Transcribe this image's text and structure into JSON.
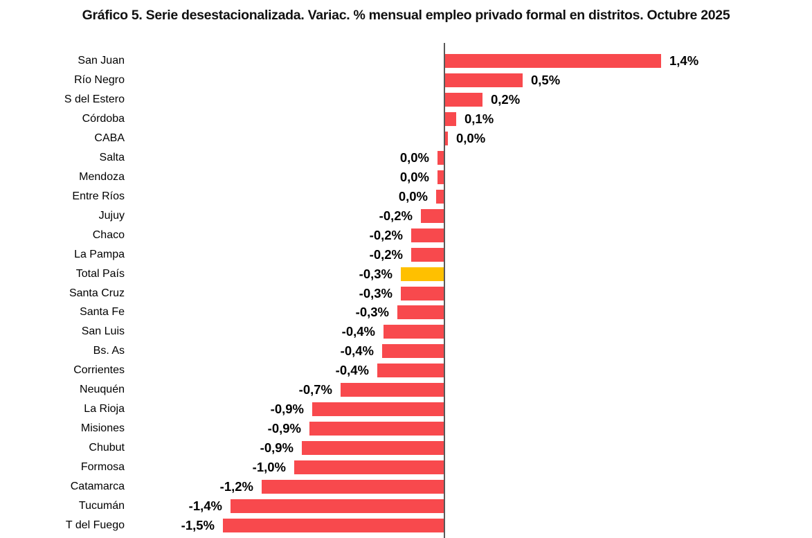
{
  "title": "Gráfico 5. Serie desestacionalizada. Variac. % mensual empleo privado formal en distritos. Octubre 2025",
  "colors": {
    "bar": "#f8494d",
    "bar_highlight": "#ffc000",
    "axis": "#595959",
    "text": "#000000",
    "title_text": "#111111"
  },
  "chart_data": {
    "type": "bar",
    "orientation": "horizontal",
    "title": "Gráfico 5. Serie desestacionalizada. Variac. % mensual empleo privado formal en distritos. Octubre 2025",
    "unit": "%",
    "grid": false,
    "legend": false,
    "xlim": [
      -1.6,
      2.4
    ],
    "highlight_category": "Total País",
    "categories": [
      "San Juan",
      "Río Negro",
      "S del Estero",
      "Córdoba",
      "CABA",
      "Salta",
      "Mendoza",
      "Entre Ríos",
      "Jujuy",
      "Chaco",
      "La Pampa",
      "Total País",
      "Santa Cruz",
      "Santa Fe",
      "San Luis",
      "Bs. As",
      "Corrientes",
      "Neuquén",
      "La Rioja",
      "Misiones",
      "Chubut",
      "Formosa",
      "Catamarca",
      "Tucumán",
      "T del Fuego"
    ],
    "values": [
      1.4,
      0.5,
      0.2,
      0.1,
      0.0,
      0.0,
      0.0,
      0.0,
      -0.2,
      -0.2,
      -0.2,
      -0.3,
      -0.3,
      -0.3,
      -0.4,
      -0.4,
      -0.4,
      -0.7,
      -0.9,
      -0.9,
      -0.9,
      -1.0,
      -1.2,
      -1.4,
      -1.5
    ],
    "value_labels": [
      "1,4%",
      "0,5%",
      "0,2%",
      "0,1%",
      "0,0%",
      "0,0%",
      "0,0%",
      "0,0%",
      "-0,2%",
      "-0,2%",
      "-0,2%",
      "-0,3%",
      "-0,3%",
      "-0,3%",
      "-0,4%",
      "-0,4%",
      "-0,4%",
      "-0,7%",
      "-0,9%",
      "-0,9%",
      "-0,9%",
      "-1,0%",
      "-1,2%",
      "-1,4%",
      "-1,5%"
    ],
    "bar_render_values": [
      1.4,
      0.5,
      0.24,
      0.07,
      0.02,
      -0.04,
      -0.04,
      -0.05,
      -0.15,
      -0.21,
      -0.21,
      -0.28,
      -0.28,
      -0.3,
      -0.39,
      -0.4,
      -0.43,
      -0.67,
      -0.85,
      -0.87,
      -0.92,
      -0.97,
      -1.18,
      -1.38,
      -1.43
    ]
  }
}
